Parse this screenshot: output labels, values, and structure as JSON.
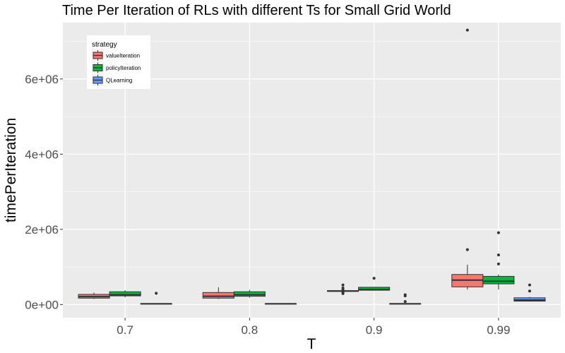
{
  "chart_data": {
    "type": "boxplot",
    "title": "Time Per Iteration of RLs with different Ts for Small Grid World",
    "xlabel": "T",
    "ylabel": "timePerIteration",
    "categories": [
      "0.7",
      "0.8",
      "0.9",
      "0.99"
    ],
    "ylim": [
      -350000,
      7500000
    ],
    "y_ticks": [
      0,
      2000000,
      4000000,
      6000000
    ],
    "y_tick_labels": [
      "0e+00",
      "2e+06",
      "4e+06",
      "6e+06"
    ],
    "grid": true,
    "legend": {
      "title": "strategy",
      "position": "top-left"
    },
    "series": [
      {
        "name": "valueIteration",
        "color": "#F8766D",
        "boxes": [
          {
            "category": "0.7",
            "whisker_low": 150000,
            "q1": 170000,
            "median": 210000,
            "q3": 270000,
            "whisker_high": 320000,
            "outliers": []
          },
          {
            "category": "0.8",
            "whisker_low": 150000,
            "q1": 170000,
            "median": 220000,
            "q3": 320000,
            "whisker_high": 460000,
            "outliers": []
          },
          {
            "category": "0.9",
            "whisker_low": 340000,
            "q1": 350000,
            "median": 360000,
            "q3": 370000,
            "whisker_high": 380000,
            "outliers": [
              290000,
              320000,
              340000,
              400000,
              440000,
              520000
            ]
          },
          {
            "category": "0.99",
            "whisker_low": 400000,
            "q1": 470000,
            "median": 650000,
            "q3": 800000,
            "whisker_high": 1060000,
            "outliers": [
              1460000,
              7300000
            ]
          }
        ]
      },
      {
        "name": "policyIteration",
        "color": "#00BA38",
        "boxes": [
          {
            "category": "0.7",
            "whisker_low": 190000,
            "q1": 230000,
            "median": 260000,
            "q3": 340000,
            "whisker_high": 380000,
            "outliers": []
          },
          {
            "category": "0.8",
            "whisker_low": 180000,
            "q1": 220000,
            "median": 260000,
            "q3": 340000,
            "whisker_high": 390000,
            "outliers": []
          },
          {
            "category": "0.9",
            "whisker_low": 370000,
            "q1": 380000,
            "median": 400000,
            "q3": 460000,
            "whisker_high": 470000,
            "outliers": [
              700000
            ]
          },
          {
            "category": "0.99",
            "whisker_low": 400000,
            "q1": 550000,
            "median": 620000,
            "q3": 750000,
            "whisker_high": 800000,
            "outliers": [
              1080000,
              1320000,
              1910000
            ]
          }
        ]
      },
      {
        "name": "QLearning",
        "color": "#619CFF",
        "boxes": [
          {
            "category": "0.7",
            "whisker_low": 10000,
            "q1": 15000,
            "median": 20000,
            "q3": 25000,
            "whisker_high": 30000,
            "outliers": [
              300000
            ]
          },
          {
            "category": "0.8",
            "whisker_low": 10000,
            "q1": 15000,
            "median": 20000,
            "q3": 25000,
            "whisker_high": 30000,
            "outliers": []
          },
          {
            "category": "0.9",
            "whisker_low": 10000,
            "q1": 15000,
            "median": 20000,
            "q3": 25000,
            "whisker_high": 30000,
            "outliers": [
              80000,
              230000,
              260000
            ]
          },
          {
            "category": "0.99",
            "whisker_low": 80000,
            "q1": 90000,
            "median": 120000,
            "q3": 180000,
            "whisker_high": 200000,
            "outliers": [
              360000,
              520000
            ]
          }
        ]
      }
    ]
  }
}
